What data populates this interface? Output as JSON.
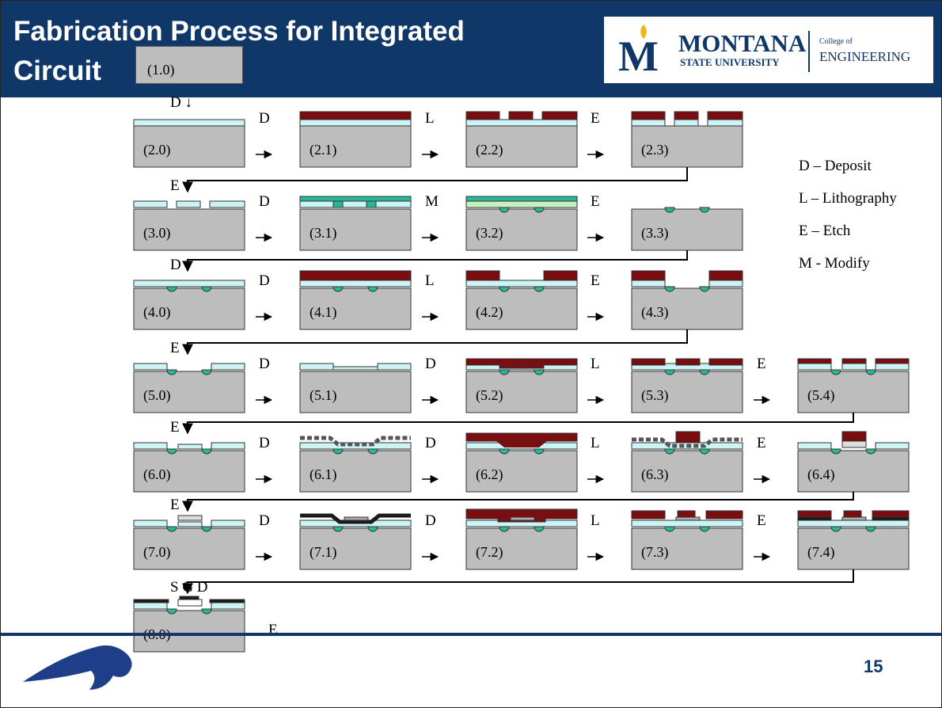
{
  "title": "Fabrication Process for Integrated\nCircuit",
  "title_line1": "Fabrication Process for Integrated",
  "title_line2": "Circuit",
  "step_box_label": "(1.0)",
  "logo": {
    "mark": "M",
    "name": "MONTANA",
    "sub": "STATE UNIVERSITY",
    "college": "College of",
    "dept": "ENGINEERING"
  },
  "legend": [
    "D – Deposit",
    "L – Lithography",
    "E – Etch",
    "M - Modify"
  ],
  "rows": [
    {
      "steps": [
        {
          "label": "(2.0)",
          "op": "D ↓"
        },
        {
          "label": "(2.1)",
          "op": "D"
        },
        {
          "label": "(2.2)",
          "op": "L"
        },
        {
          "label": "(2.3)",
          "op": "E"
        }
      ]
    },
    {
      "steps": [
        {
          "label": "(3.0)",
          "op": "E"
        },
        {
          "label": "(3.1)",
          "op": "D"
        },
        {
          "label": "(3.2)",
          "op": "M"
        },
        {
          "label": "(3.3)",
          "op": "E"
        }
      ]
    },
    {
      "steps": [
        {
          "label": "(4.0)",
          "op": "D"
        },
        {
          "label": "(4.1)",
          "op": "D"
        },
        {
          "label": "(4.2)",
          "op": "L"
        },
        {
          "label": "(4.3)",
          "op": "E"
        }
      ]
    },
    {
      "steps": [
        {
          "label": "(5.0)",
          "op": "E"
        },
        {
          "label": "(5.1)",
          "op": "D"
        },
        {
          "label": "(5.2)",
          "op": "D"
        },
        {
          "label": "(5.3)",
          "op": "L"
        },
        {
          "label": "(5.4)",
          "op": "E"
        }
      ]
    },
    {
      "steps": [
        {
          "label": "(6.0)",
          "op": "E"
        },
        {
          "label": "(6.1)",
          "op": "D"
        },
        {
          "label": "(6.2)",
          "op": "D"
        },
        {
          "label": "(6.3)",
          "op": "L"
        },
        {
          "label": "(6.4)",
          "op": "E"
        }
      ]
    },
    {
      "steps": [
        {
          "label": "(7.0)",
          "op": "E"
        },
        {
          "label": "(7.1)",
          "op": "D"
        },
        {
          "label": "(7.2)",
          "op": "D"
        },
        {
          "label": "(7.3)",
          "op": "L"
        },
        {
          "label": "(7.4)",
          "op": "E"
        }
      ]
    },
    {
      "steps": [
        {
          "label": "(8.0)",
          "op": "S  G  D"
        }
      ]
    }
  ],
  "final_etch_label": "E",
  "page_number": "15",
  "colors": {
    "header": "#0f3868",
    "substrate": "#bdbdbd",
    "oxide": "#cdf3f5",
    "resist": "#7a0d10",
    "doped": "#28b895",
    "modified": "#c8f0c0",
    "metal": "#1a1a1a"
  }
}
